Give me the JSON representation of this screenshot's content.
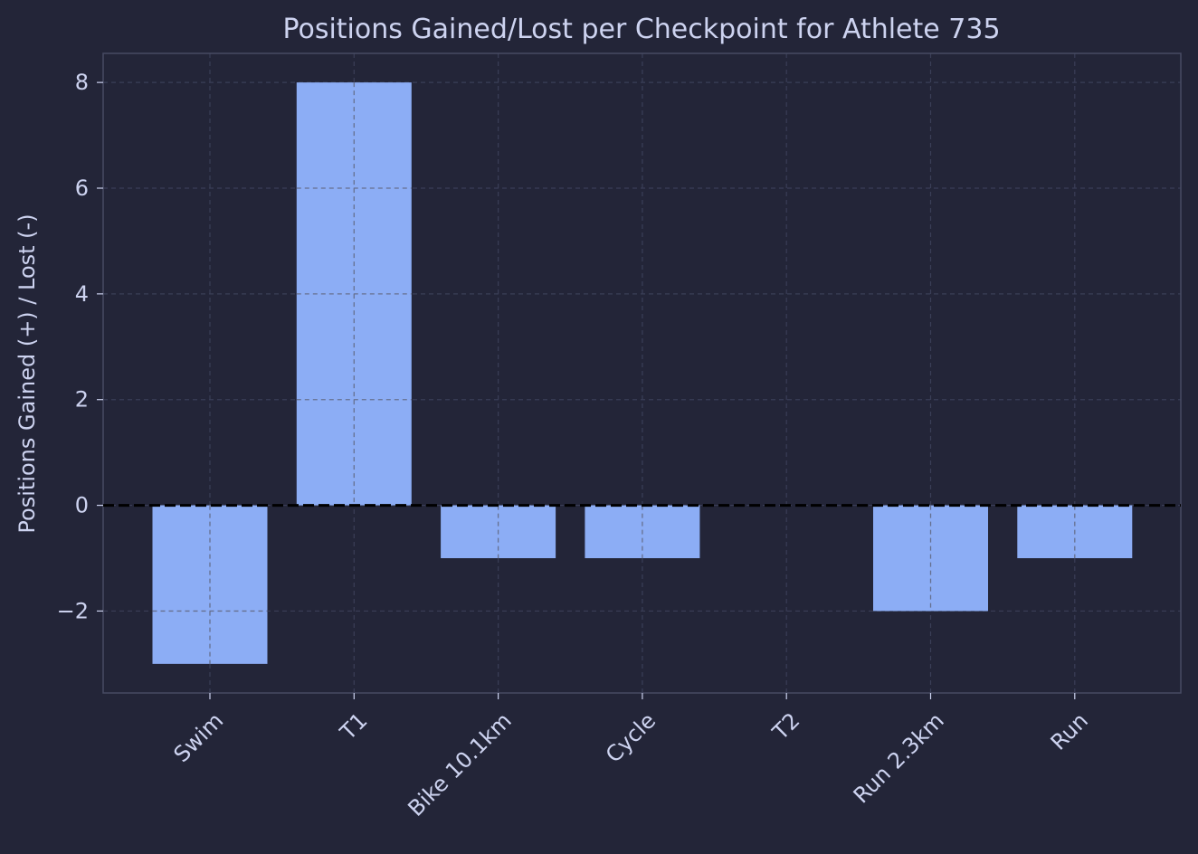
{
  "colors": {
    "background": "#232538",
    "bar": "#8cadf5",
    "text": "#cdd3f0",
    "grid": "#3a3e57",
    "frame": "#474b63",
    "zero_line": "#000000"
  },
  "chart_data": {
    "type": "bar",
    "title": "Positions Gained/Lost per Checkpoint for Athlete 735",
    "xlabel": "",
    "ylabel": "Positions Gained (+) / Lost (-)",
    "categories": [
      "Swim",
      "T1",
      "Bike 10.1km",
      "Cycle",
      "T2",
      "Run 2.3km",
      "Run"
    ],
    "values": [
      -3,
      8,
      -1,
      -1,
      0,
      -2,
      -1
    ],
    "ylim": [
      -3.55,
      8.55
    ],
    "yticks": [
      -2,
      0,
      2,
      4,
      6,
      8
    ],
    "ytick_labels": [
      "−2",
      "0",
      "2",
      "4",
      "6",
      "8"
    ],
    "grid": true,
    "zero_reference_line": true
  }
}
